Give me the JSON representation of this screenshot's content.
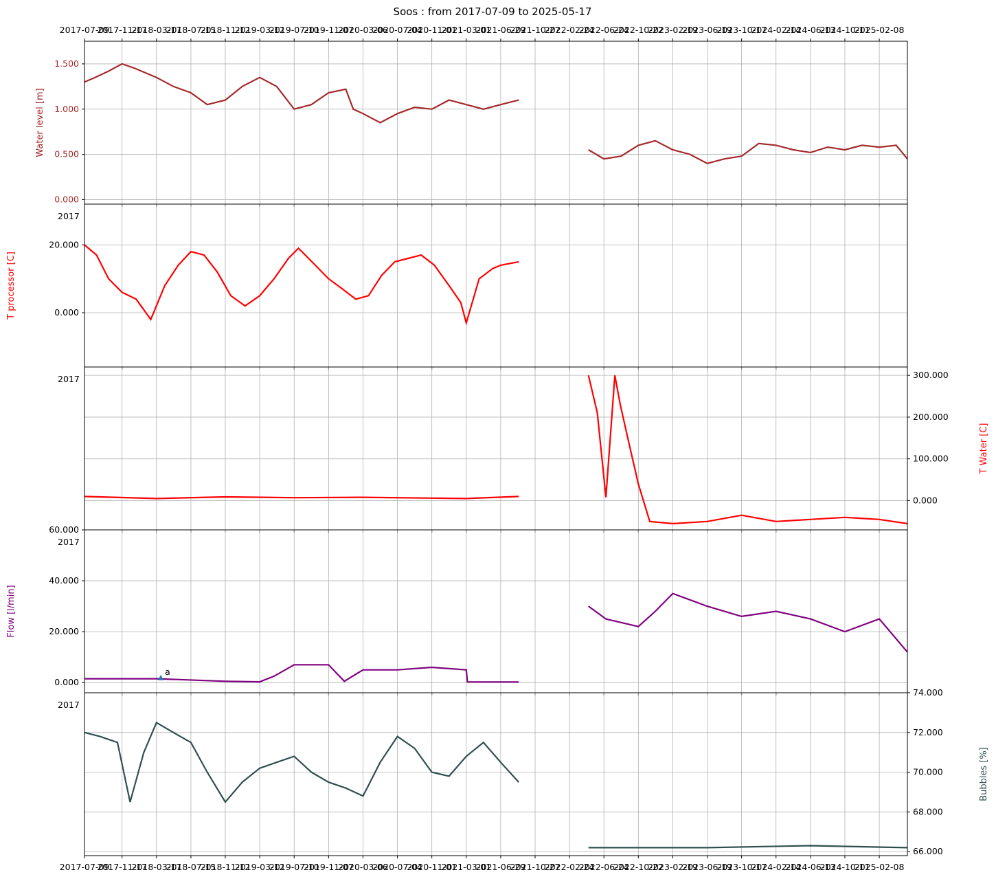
{
  "figure": {
    "title": "Soos : from 2017-07-09 to 2025-05-17"
  },
  "chart_data": {
    "type": "line",
    "x_range": [
      "2017-07-09",
      "2025-05-17"
    ],
    "x_tick_labels": [
      "2017-07-09",
      "2017-11-17",
      "2018-03-17",
      "2018-07-15",
      "2018-11-12",
      "2019-03-12",
      "2019-07-10",
      "2019-11-07",
      "2020-03-06",
      "2020-07-04",
      "2020-11-01",
      "2021-03-01",
      "2021-06-29",
      "2021-10-27",
      "2022-02-24",
      "2022-06-24",
      "2022-10-22",
      "2023-02-19",
      "2023-06-19",
      "2023-10-17",
      "2024-02-14",
      "2024-06-13",
      "2024-10-11",
      "2025-02-08"
    ],
    "x_tick_labels_as_printed": [
      "2017-07-09",
      "2017-11-17",
      "2018-03-17",
      "2018-07-15",
      "2018-11-12",
      "2019-03-12",
      "2019-07-10",
      "2019-11-07",
      "2020-03-06",
      "2020-07-04",
      "2020-11-01",
      "2021-03-01",
      "2021-06-29",
      "2021-10-27",
      "2022-02-24",
      "2022-06-24",
      "2022-10-22",
      "2023-02-19",
      "2023-06-19",
      "2023-10-17",
      "2024-02-14",
      "2024-06-13",
      "2024-10-11",
      "2025-02-08"
    ],
    "grid": true,
    "panels": [
      {
        "id": "water_level",
        "ylabel": "Water level [m]",
        "y_axis_side": "left",
        "color": "#a52a2a",
        "ylim": [
          -0.05,
          1.75
        ],
        "y_ticks": [
          0.0,
          0.5,
          1.0,
          1.5
        ],
        "y_tick_labels": [
          "0.000",
          "0.500",
          "1.000",
          "1.500"
        ],
        "corner_label": "",
        "series": [
          {
            "x": [
              "2017-07-09",
              "2017-08-15",
              "2017-10-01",
              "2017-11-17",
              "2018-01-01",
              "2018-03-17",
              "2018-05-15",
              "2018-07-15",
              "2018-09-10",
              "2018-11-12",
              "2019-01-10",
              "2019-03-12",
              "2019-05-10",
              "2019-07-10",
              "2019-09-08",
              "2019-11-07",
              "2020-01-06",
              "2020-02-01",
              "2020-03-06",
              "2020-05-05",
              "2020-07-04",
              "2020-09-02",
              "2020-11-01",
              "2020-12-31",
              "2021-03-01",
              "2021-04-30",
              "2021-06-29",
              "2021-08-31"
            ],
            "y": [
              1.3,
              1.35,
              1.42,
              1.5,
              1.45,
              1.35,
              1.25,
              1.18,
              1.05,
              1.1,
              1.25,
              1.35,
              1.25,
              1.0,
              1.05,
              1.18,
              1.22,
              1.0,
              0.95,
              0.85,
              0.95,
              1.02,
              1.0,
              1.1,
              1.05,
              1.0,
              1.05,
              1.1
            ]
          },
          {
            "x": [
              "2022-05-01",
              "2022-06-24",
              "2022-08-23",
              "2022-10-22",
              "2022-12-20",
              "2023-02-19",
              "2023-04-20",
              "2023-06-19",
              "2023-08-18",
              "2023-10-17",
              "2023-12-16",
              "2024-02-14",
              "2024-04-14",
              "2024-06-13",
              "2024-08-12",
              "2024-10-11",
              "2024-12-10",
              "2025-02-08",
              "2025-04-08",
              "2025-05-17"
            ],
            "y": [
              0.55,
              0.45,
              0.48,
              0.6,
              0.65,
              0.55,
              0.5,
              0.4,
              0.45,
              0.48,
              0.62,
              0.6,
              0.55,
              0.52,
              0.58,
              0.55,
              0.6,
              0.58,
              0.6,
              0.45
            ]
          }
        ]
      },
      {
        "id": "t_processor",
        "ylabel": "T processor [C]",
        "y_axis_side": "left",
        "color": "#ff0000",
        "ylim": [
          -16,
          32
        ],
        "y_ticks": [
          0,
          20
        ],
        "y_tick_labels": [
          "0.000",
          "20.000"
        ],
        "corner_label": "2017",
        "series": [
          {
            "x": [
              "2017-07-09",
              "2017-08-20",
              "2017-10-01",
              "2017-11-17",
              "2018-01-05",
              "2018-02-25",
              "2018-04-15",
              "2018-06-01",
              "2018-07-15",
              "2018-08-30",
              "2018-10-15",
              "2018-12-01",
              "2019-01-20",
              "2019-03-12",
              "2019-05-01",
              "2019-06-20",
              "2019-07-25",
              "2019-09-10",
              "2019-11-07",
              "2019-12-25",
              "2020-02-10",
              "2020-03-25",
              "2020-05-10",
              "2020-06-25",
              "2020-08-10",
              "2020-09-25",
              "2020-11-10",
              "2020-12-31",
              "2021-02-10",
              "2021-03-01",
              "2021-04-15",
              "2021-06-01",
              "2021-06-29",
              "2021-08-31"
            ],
            "y": [
              20,
              17,
              10,
              6,
              4,
              -2,
              8,
              14,
              18,
              17,
              12,
              5,
              2,
              5,
              10,
              16,
              19,
              15,
              10,
              7,
              4,
              5,
              11,
              15,
              16,
              17,
              14,
              8,
              3,
              -3,
              10,
              13,
              14,
              15
            ]
          }
        ]
      },
      {
        "id": "t_water",
        "ylabel": "T Water [C]",
        "y_axis_side": "right",
        "color": "#ff0000",
        "ylim": [
          -70,
          320
        ],
        "y_ticks": [
          0,
          100,
          200,
          300
        ],
        "y_tick_labels": [
          "0.000",
          "100.000",
          "200.000",
          "300.000"
        ],
        "corner_label": "2017",
        "series": [
          {
            "x": [
              "2017-07-09",
              "2018-03-17",
              "2018-11-12",
              "2019-07-10",
              "2020-03-06",
              "2020-11-01",
              "2021-03-01",
              "2021-08-31"
            ],
            "y": [
              10,
              5,
              9,
              7,
              8,
              6,
              5,
              10
            ]
          },
          {
            "x": [
              "2022-05-01",
              "2022-06-01",
              "2022-07-01",
              "2022-08-01",
              "2022-08-20",
              "2022-09-15",
              "2022-10-22",
              "2022-12-01",
              "2023-02-19",
              "2023-06-19",
              "2023-10-17",
              "2024-02-14",
              "2024-06-13",
              "2024-10-11",
              "2025-02-08",
              "2025-05-17"
            ],
            "y": [
              300,
              210,
              8,
              300,
              230,
              150,
              40,
              -50,
              -55,
              -50,
              -35,
              -50,
              -45,
              -40,
              -45,
              -55
            ]
          }
        ]
      },
      {
        "id": "flow",
        "ylabel": "Flow [l/min]",
        "y_axis_side": "left",
        "color": "#800080",
        "ylim": [
          -4,
          60
        ],
        "y_ticks": [
          0,
          20,
          40,
          60
        ],
        "y_tick_labels": [
          "0.000",
          "20.000",
          "40.000",
          "60.000"
        ],
        "corner_label": "2017",
        "annotation": {
          "label": "a",
          "x": "2018-04-01",
          "y": 2.0,
          "marker_color": "#1f77b4"
        },
        "series": [
          {
            "x": [
              "2017-07-09",
              "2018-03-17",
              "2018-11-12",
              "2019-03-12",
              "2019-05-01",
              "2019-07-10",
              "2019-11-07",
              "2020-01-01",
              "2020-03-06",
              "2020-07-04",
              "2020-11-01",
              "2021-03-01",
              "2021-03-05",
              "2021-08-31"
            ],
            "y": [
              1.5,
              1.5,
              0.5,
              0.3,
              2.5,
              7.0,
              7.0,
              0.5,
              5.0,
              5.0,
              6.0,
              5.0,
              0.2,
              0.2
            ]
          },
          {
            "x": [
              "2022-05-01",
              "2022-07-01",
              "2022-10-22",
              "2022-12-20",
              "2023-02-19",
              "2023-06-19",
              "2023-10-17",
              "2024-02-14",
              "2024-06-13",
              "2024-10-11",
              "2025-02-08",
              "2025-05-17"
            ],
            "y": [
              30,
              25,
              22,
              28,
              35,
              30,
              26,
              28,
              25,
              20,
              25,
              12
            ]
          }
        ]
      },
      {
        "id": "bubbles",
        "ylabel": "Bubbles [%]",
        "y_axis_side": "right",
        "color": "#2f4f4f",
        "ylim": [
          65.8,
          74.0
        ],
        "y_ticks": [
          66,
          68,
          70,
          72,
          74
        ],
        "y_tick_labels": [
          "66.000",
          "68.000",
          "70.000",
          "72.000",
          "74.000"
        ],
        "corner_label": "2017",
        "series": [
          {
            "x": [
              "2017-07-09",
              "2017-09-01",
              "2017-11-01",
              "2017-12-15",
              "2018-02-01",
              "2018-03-17",
              "2018-05-15",
              "2018-07-15",
              "2018-09-10",
              "2018-11-12",
              "2019-01-10",
              "2019-03-12",
              "2019-05-10",
              "2019-07-10",
              "2019-09-08",
              "2019-11-07",
              "2020-01-06",
              "2020-03-06",
              "2020-05-05",
              "2020-07-04",
              "2020-09-02",
              "2020-11-01",
              "2020-12-31",
              "2021-03-01",
              "2021-04-30",
              "2021-06-29",
              "2021-08-31"
            ],
            "y": [
              72.0,
              71.8,
              71.5,
              68.5,
              71.0,
              72.5,
              72.0,
              71.5,
              70.0,
              68.5,
              69.5,
              70.2,
              70.5,
              70.8,
              70.0,
              69.5,
              69.2,
              68.8,
              70.5,
              71.8,
              71.2,
              70.0,
              69.8,
              70.8,
              71.5,
              70.5,
              69.5
            ]
          },
          {
            "x": [
              "2022-05-01",
              "2023-06-19",
              "2024-06-13",
              "2025-05-17"
            ],
            "y": [
              66.2,
              66.2,
              66.3,
              66.2
            ]
          }
        ]
      }
    ]
  }
}
